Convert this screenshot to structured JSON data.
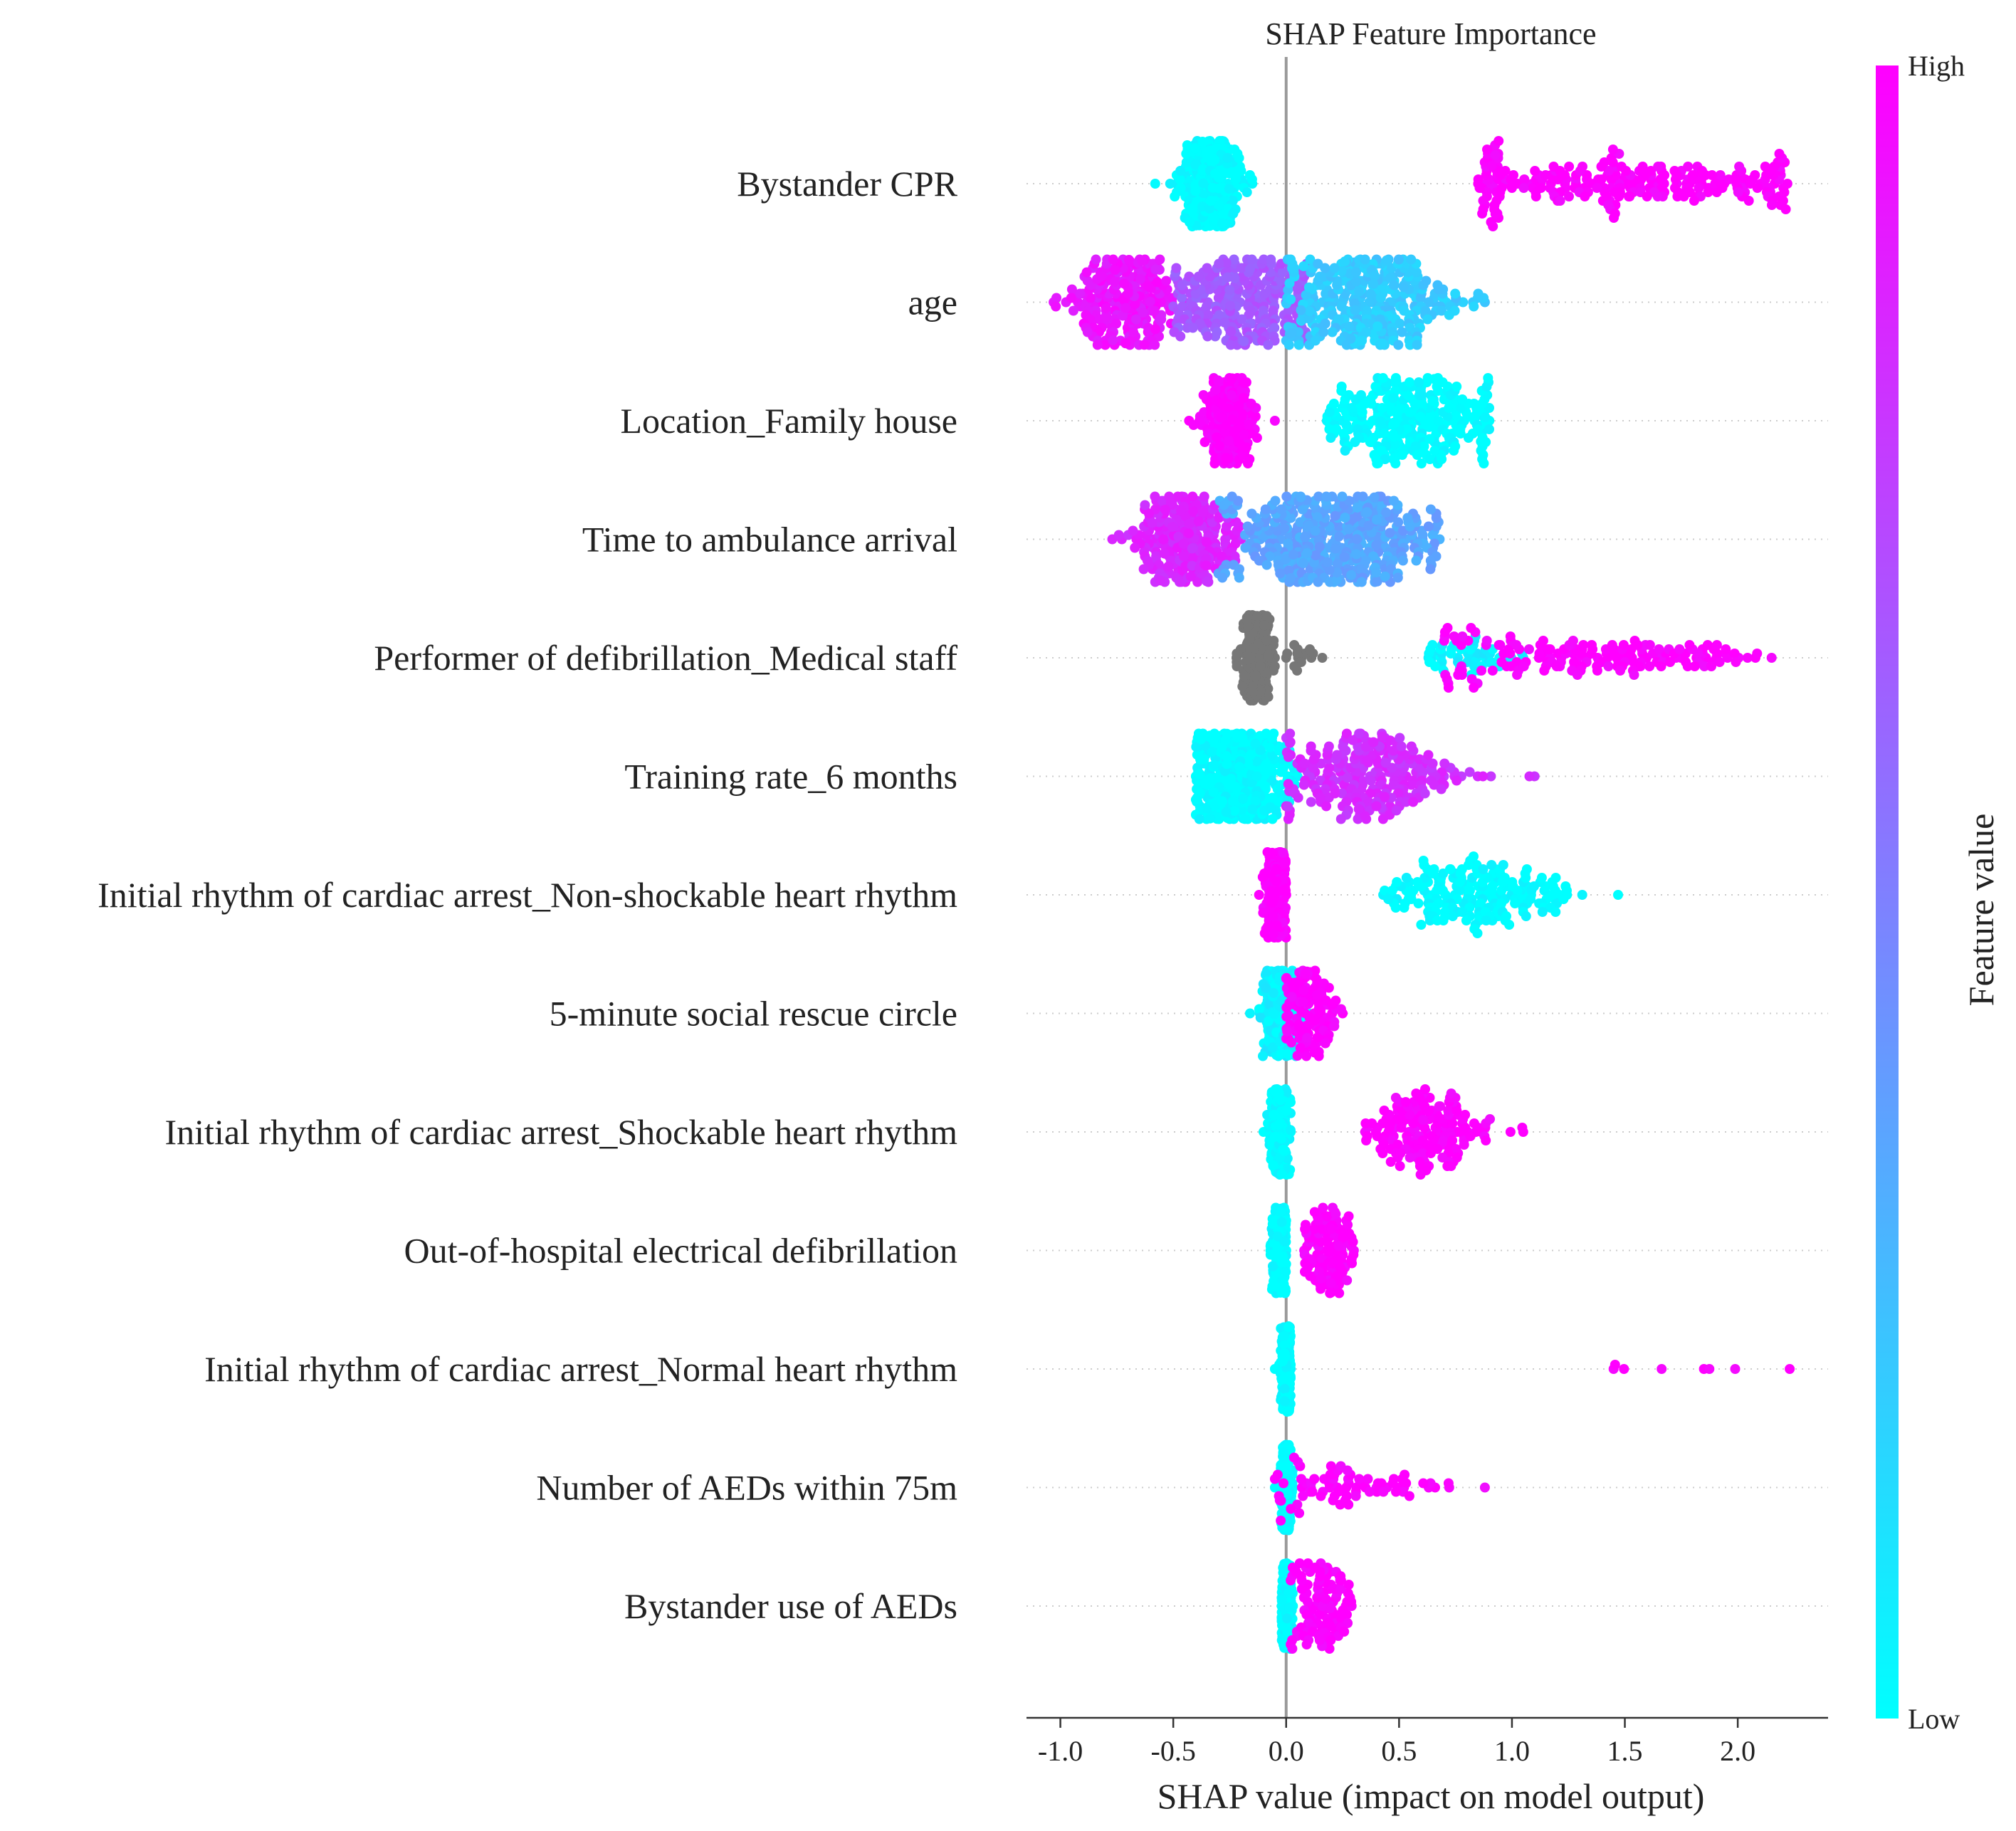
{
  "chart_data": {
    "type": "scatter",
    "subtype": "shap-beeswarm",
    "title": "SHAP Feature Importance",
    "xlabel": "SHAP value (impact on model output)",
    "ylabel": "",
    "xlim": [
      -1.15,
      2.4
    ],
    "xticks": [
      -1.0,
      -0.5,
      0.0,
      0.5,
      1.0,
      1.5,
      2.0
    ],
    "xtick_labels": [
      "-1.0",
      "-0.5",
      "0.0",
      "0.5",
      "1.0",
      "1.5",
      "2.0"
    ],
    "grid": "dotted horizontal guide per feature",
    "colorbar": {
      "label": "Feature value",
      "high_label": "High",
      "low_label": "Low",
      "low_color": "#00ffff",
      "high_color": "#ff00ff",
      "missing_color": "#777777"
    },
    "features": [
      {
        "name": "Bystander CPR",
        "clusters": [
          {
            "min": -0.58,
            "max": -0.15,
            "center": -0.34,
            "spread": 0.06,
            "n": 420,
            "value": 0.0
          },
          {
            "min": 0.85,
            "max": 2.22,
            "center": 1.5,
            "spread": 0.5,
            "n": 260,
            "value": 1.0
          }
        ]
      },
      {
        "name": "age",
        "clusters": [
          {
            "min": -1.03,
            "max": -0.45,
            "center": -0.72,
            "spread": 0.12,
            "n": 240,
            "value": 0.92
          },
          {
            "min": -0.5,
            "max": 0.1,
            "center": -0.2,
            "spread": 0.18,
            "n": 260,
            "value": 0.65
          },
          {
            "min": 0.0,
            "max": 0.88,
            "center": 0.35,
            "spread": 0.2,
            "n": 340,
            "value": 0.2
          }
        ]
      },
      {
        "name": "Location_Family house",
        "clusters": [
          {
            "min": -0.43,
            "max": -0.05,
            "center": -0.26,
            "spread": 0.05,
            "n": 380,
            "value": 1.0
          },
          {
            "min": 0.18,
            "max": 0.9,
            "center": 0.55,
            "spread": 0.2,
            "n": 300,
            "value": 0.0
          }
        ]
      },
      {
        "name": "Time to ambulance arrival",
        "clusters": [
          {
            "min": -0.77,
            "max": -0.2,
            "center": -0.45,
            "spread": 0.12,
            "n": 280,
            "value": 0.85
          },
          {
            "min": -0.3,
            "max": 0.68,
            "center": 0.2,
            "spread": 0.22,
            "n": 460,
            "value": 0.35
          }
        ]
      },
      {
        "name": "Performer of defibrillation_Medical staff",
        "clusters": [
          {
            "min": -0.22,
            "max": -0.05,
            "center": -0.13,
            "spread": 0.03,
            "n": 300,
            "value": null
          },
          {
            "min": 0.0,
            "max": 0.16,
            "center": 0.06,
            "spread": 0.05,
            "n": 16,
            "value": null
          },
          {
            "min": 0.63,
            "max": 1.05,
            "center": 0.8,
            "spread": 0.12,
            "n": 50,
            "value": 0.05
          },
          {
            "min": 0.7,
            "max": 2.15,
            "center": 1.4,
            "spread": 0.4,
            "n": 170,
            "value": 1.0
          }
        ]
      },
      {
        "name": "Training rate_6 months",
        "clusters": [
          {
            "min": -0.4,
            "max": 0.05,
            "center": -0.22,
            "spread": 0.1,
            "n": 480,
            "value": 0.0
          },
          {
            "min": 0.0,
            "max": 1.1,
            "center": 0.35,
            "spread": 0.2,
            "n": 260,
            "value": 0.82
          }
        ]
      },
      {
        "name": "Initial rhythm of cardiac arrest_Non-shockable heart rhythm",
        "clusters": [
          {
            "min": -0.12,
            "max": 0.0,
            "center": -0.04,
            "spread": 0.025,
            "n": 260,
            "value": 1.0
          },
          {
            "min": 0.43,
            "max": 1.47,
            "center": 0.82,
            "spread": 0.22,
            "n": 200,
            "value": 0.0
          }
        ]
      },
      {
        "name": "5-minute social rescue circle",
        "clusters": [
          {
            "min": -0.16,
            "max": 0.1,
            "center": -0.02,
            "spread": 0.04,
            "n": 360,
            "value": 0.05
          },
          {
            "min": 0.0,
            "max": 0.25,
            "center": 0.1,
            "spread": 0.06,
            "n": 140,
            "value": 1.0
          }
        ]
      },
      {
        "name": "Initial rhythm of cardiac arrest_Shockable heart rhythm",
        "clusters": [
          {
            "min": -0.1,
            "max": 0.02,
            "center": -0.03,
            "spread": 0.02,
            "n": 300,
            "value": 0.0
          },
          {
            "min": 0.35,
            "max": 1.05,
            "center": 0.6,
            "spread": 0.15,
            "n": 160,
            "value": 1.0
          }
        ]
      },
      {
        "name": "Out-of-hospital electrical defibrillation",
        "clusters": [
          {
            "min": -0.07,
            "max": 0.0,
            "center": -0.03,
            "spread": 0.015,
            "n": 280,
            "value": 0.0
          },
          {
            "min": 0.08,
            "max": 0.3,
            "center": 0.18,
            "spread": 0.06,
            "n": 110,
            "value": 1.0
          }
        ]
      },
      {
        "name": "Initial rhythm of cardiac arrest_Normal heart rhythm",
        "clusters": [
          {
            "min": -0.05,
            "max": 0.02,
            "center": 0.0,
            "spread": 0.01,
            "n": 330,
            "value": 0.0
          },
          {
            "min": 1.45,
            "max": 2.23,
            "center": 1.8,
            "spread": 0.3,
            "n": 8,
            "value": 1.0
          }
        ]
      },
      {
        "name": "Number of AEDs within 75m",
        "clusters": [
          {
            "min": -0.05,
            "max": 0.03,
            "center": 0.0,
            "spread": 0.01,
            "n": 320,
            "value": 0.0
          },
          {
            "min": -0.05,
            "max": 0.88,
            "center": 0.25,
            "spread": 0.2,
            "n": 80,
            "value": 1.0
          }
        ]
      },
      {
        "name": "Bystander use of AEDs",
        "clusters": [
          {
            "min": -0.02,
            "max": 0.03,
            "center": 0.0,
            "spread": 0.01,
            "n": 330,
            "value": 0.0
          },
          {
            "min": 0.02,
            "max": 0.29,
            "center": 0.15,
            "spread": 0.07,
            "n": 120,
            "value": 1.0
          }
        ]
      }
    ]
  }
}
